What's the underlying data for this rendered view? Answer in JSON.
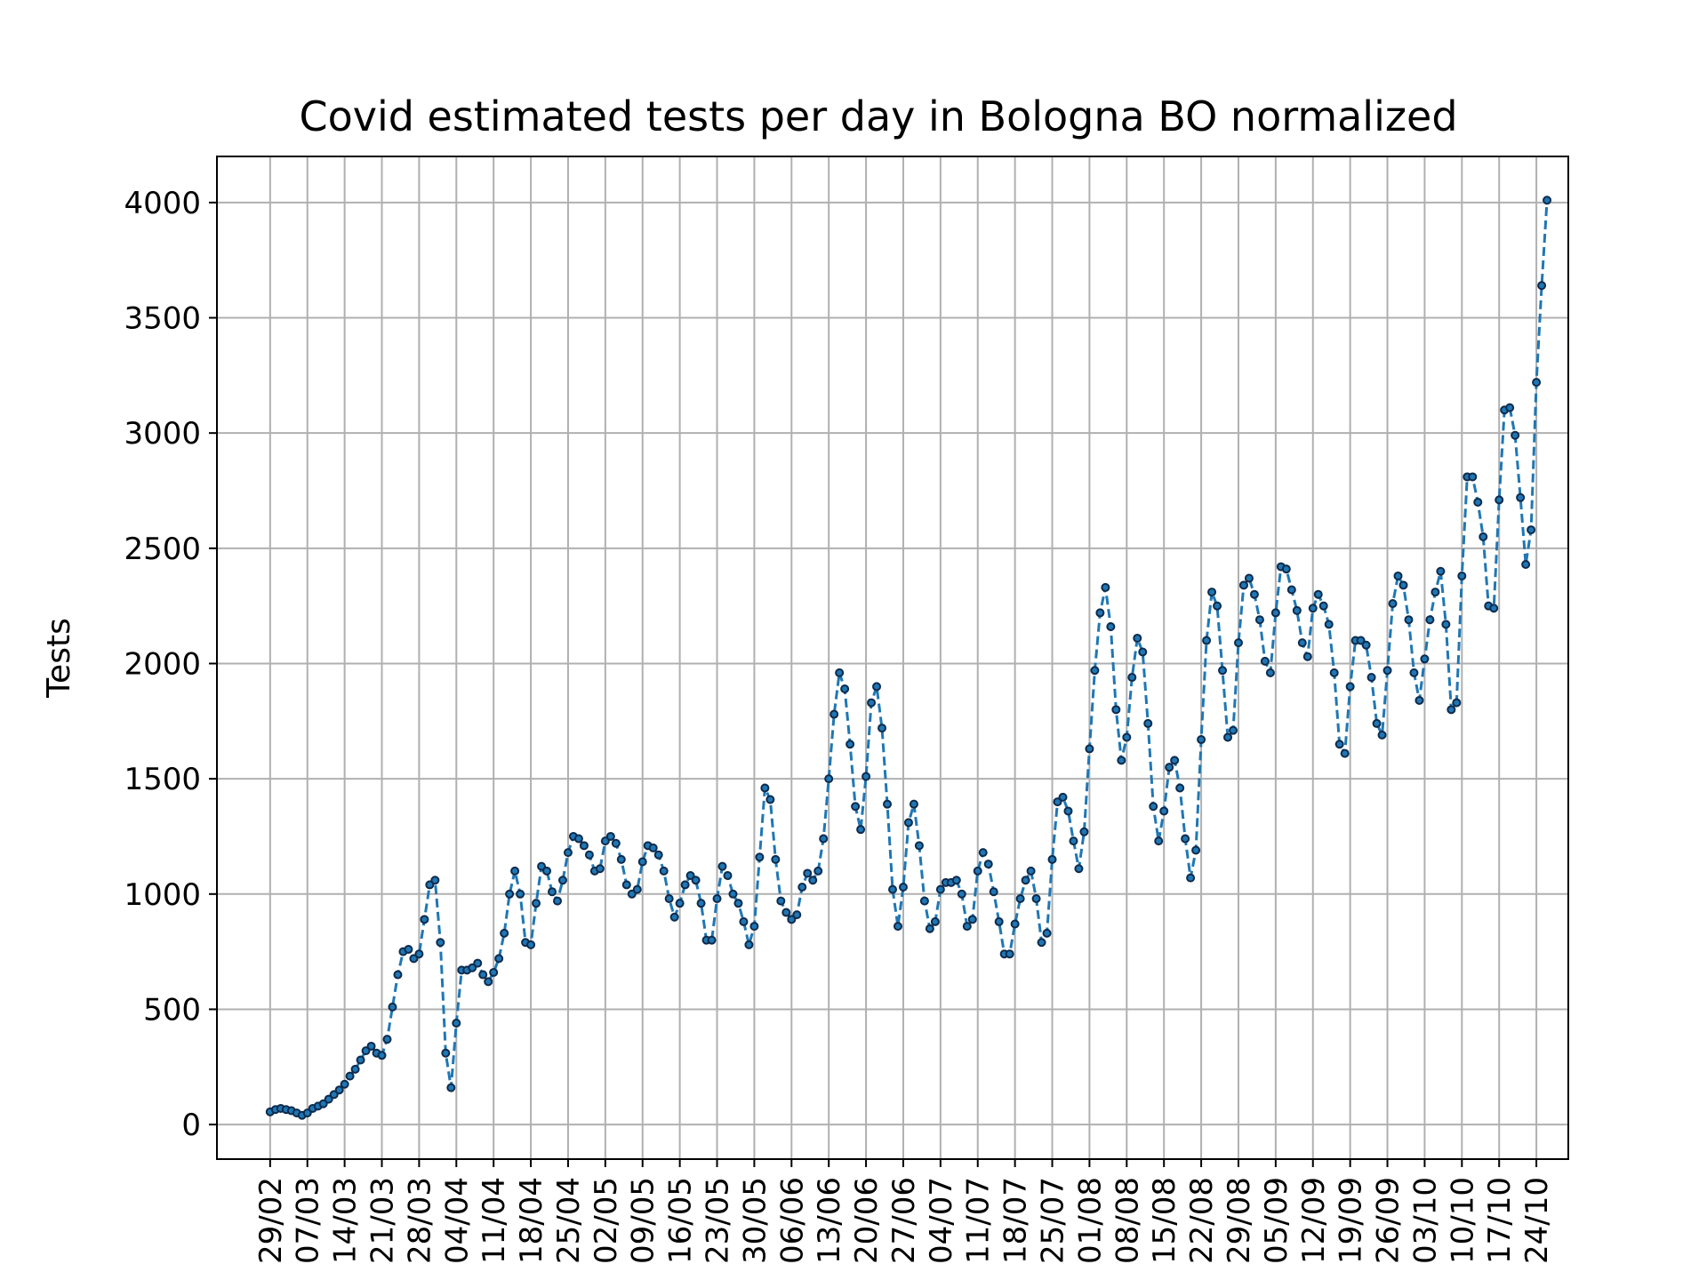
{
  "chart_data": {
    "type": "line",
    "title": "Covid estimated tests per day in Bologna BO normalized",
    "xlabel": "",
    "ylabel": "Tests",
    "ylim": [
      -150,
      4200
    ],
    "y_ticks": [
      0,
      500,
      1000,
      1500,
      2000,
      2500,
      3000,
      3500,
      4000
    ],
    "x_tick_labels": [
      "29/02",
      "07/03",
      "14/03",
      "21/03",
      "28/03",
      "04/04",
      "11/04",
      "18/04",
      "25/04",
      "02/05",
      "09/05",
      "16/05",
      "23/05",
      "30/05",
      "06/06",
      "13/06",
      "20/06",
      "27/06",
      "04/07",
      "11/07",
      "18/07",
      "25/07",
      "01/08",
      "08/08",
      "15/08",
      "22/08",
      "29/08",
      "05/09",
      "12/09",
      "19/09",
      "26/09",
      "03/10",
      "10/10",
      "17/10",
      "24/10"
    ],
    "x_tick_every": 7,
    "x_start_offset": -2,
    "grid": true,
    "series": [
      {
        "color": "#1f77b4",
        "values": [
          55,
          65,
          70,
          65,
          60,
          50,
          40,
          50,
          70,
          80,
          90,
          110,
          130,
          150,
          175,
          210,
          240,
          280,
          320,
          340,
          310,
          300,
          370,
          510,
          650,
          750,
          760,
          720,
          740,
          890,
          1040,
          1060,
          790,
          310,
          160,
          440,
          670,
          670,
          680,
          700,
          650,
          620,
          660,
          720,
          830,
          1000,
          1100,
          1000,
          790,
          780,
          960,
          1120,
          1100,
          1010,
          970,
          1060,
          1180,
          1250,
          1240,
          1210,
          1170,
          1100,
          1110,
          1230,
          1250,
          1220,
          1150,
          1040,
          1000,
          1020,
          1140,
          1210,
          1200,
          1170,
          1100,
          980,
          900,
          960,
          1040,
          1080,
          1060,
          960,
          800,
          800,
          980,
          1120,
          1080,
          1000,
          960,
          880,
          780,
          860,
          1160,
          1460,
          1410,
          1150,
          970,
          920,
          890,
          910,
          1030,
          1090,
          1060,
          1100,
          1240,
          1500,
          1780,
          1960,
          1890,
          1650,
          1380,
          1280,
          1510,
          1830,
          1900,
          1720,
          1390,
          1020,
          860,
          1030,
          1310,
          1390,
          1210,
          970,
          850,
          880,
          1020,
          1050,
          1050,
          1060,
          1000,
          860,
          890,
          1100,
          1180,
          1130,
          1010,
          880,
          740,
          740,
          870,
          980,
          1060,
          1100,
          980,
          790,
          830,
          1150,
          1400,
          1420,
          1360,
          1230,
          1110,
          1270,
          1630,
          1970,
          2220,
          2330,
          2160,
          1800,
          1580,
          1680,
          1940,
          2110,
          2050,
          1740,
          1380,
          1230,
          1360,
          1550,
          1580,
          1460,
          1240,
          1070,
          1190,
          1670,
          2100,
          2310,
          2250,
          1970,
          1680,
          1710,
          2090,
          2340,
          2370,
          2300,
          2190,
          2010,
          1960,
          2220,
          2420,
          2410,
          2320,
          2230,
          2090,
          2030,
          2240,
          2300,
          2250,
          2170,
          1960,
          1650,
          1610,
          1900,
          2100,
          2100,
          2080,
          1940,
          1740,
          1690,
          1970,
          2260,
          2380,
          2340,
          2190,
          1960,
          1840,
          2020,
          2190,
          2310,
          2400,
          2170,
          1800,
          1830,
          2380,
          2810,
          2810,
          2700,
          2550,
          2250,
          2240,
          2710,
          3100,
          3110,
          2990,
          2720,
          2430,
          2580,
          3220,
          3640,
          4010
        ]
      }
    ]
  }
}
